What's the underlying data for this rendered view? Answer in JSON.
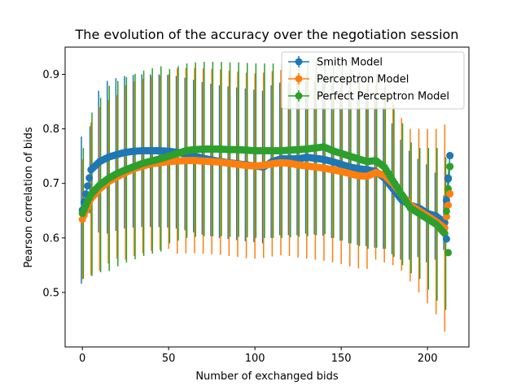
{
  "chart_data": {
    "type": "line",
    "title": "The evolution of the accuracy over the negotiation session",
    "xlabel": "Number of exchanged bids",
    "ylabel": "Pearson correlation of bids",
    "xlim": [
      -10,
      224
    ],
    "ylim": [
      0.4,
      0.95
    ],
    "xticks": [
      0,
      50,
      100,
      150,
      200
    ],
    "yticks": [
      0.5,
      0.6,
      0.7,
      0.8,
      0.9
    ],
    "grid": false,
    "legend_position": "top-right",
    "error_bars": true,
    "errorbar_sampling": "every 5th exchanged bid",
    "series": [
      {
        "name": "Smith Model",
        "color": "#1f77b4",
        "x": [
          0,
          5,
          10,
          15,
          20,
          25,
          30,
          35,
          40,
          45,
          50,
          55,
          60,
          65,
          70,
          75,
          80,
          85,
          90,
          95,
          100,
          105,
          110,
          115,
          120,
          125,
          130,
          135,
          140,
          145,
          150,
          155,
          160,
          165,
          170,
          175,
          180,
          185,
          190,
          195,
          200,
          205,
          210,
          213
        ],
        "y": [
          0.651,
          0.725,
          0.74,
          0.748,
          0.753,
          0.757,
          0.759,
          0.76,
          0.76,
          0.76,
          0.759,
          0.757,
          0.754,
          0.75,
          0.746,
          0.743,
          0.74,
          0.738,
          0.736,
          0.734,
          0.732,
          0.73,
          0.74,
          0.745,
          0.745,
          0.745,
          0.748,
          0.746,
          0.744,
          0.74,
          0.735,
          0.73,
          0.727,
          0.725,
          0.722,
          0.71,
          0.69,
          0.67,
          0.66,
          0.655,
          0.645,
          0.64,
          0.628,
          0.751
        ],
        "err": [
          0.135,
          0.08,
          0.13,
          0.14,
          0.14,
          0.14,
          0.14,
          0.14,
          0.14,
          0.14,
          0.14,
          0.14,
          0.14,
          0.14,
          0.14,
          0.14,
          0.14,
          0.14,
          0.14,
          0.14,
          0.14,
          0.14,
          0.14,
          0.14,
          0.14,
          0.14,
          0.14,
          0.14,
          0.14,
          0.14,
          0.14,
          0.14,
          0.14,
          0.14,
          0.14,
          0.13,
          0.12,
          0.11,
          0.1,
          0.09,
          0.09,
          0.08,
          0.05,
          0.0
        ]
      },
      {
        "name": "Perceptron Model",
        "color": "#ff7f0e",
        "x": [
          0,
          5,
          10,
          15,
          20,
          25,
          30,
          35,
          40,
          45,
          50,
          55,
          60,
          65,
          70,
          75,
          80,
          85,
          90,
          95,
          100,
          105,
          110,
          115,
          120,
          125,
          130,
          135,
          140,
          145,
          150,
          155,
          160,
          165,
          170,
          175,
          180,
          185,
          190,
          195,
          200,
          205,
          210,
          213
        ],
        "y": [
          0.634,
          0.672,
          0.69,
          0.703,
          0.712,
          0.72,
          0.727,
          0.732,
          0.736,
          0.738,
          0.74,
          0.741,
          0.742,
          0.742,
          0.741,
          0.74,
          0.739,
          0.737,
          0.735,
          0.733,
          0.732,
          0.733,
          0.736,
          0.738,
          0.737,
          0.734,
          0.732,
          0.73,
          0.728,
          0.725,
          0.722,
          0.718,
          0.714,
          0.713,
          0.72,
          0.715,
          0.7,
          0.68,
          0.66,
          0.65,
          0.64,
          0.63,
          0.618,
          0.681
        ],
        "err": [
          0.11,
          0.14,
          0.15,
          0.15,
          0.15,
          0.16,
          0.16,
          0.16,
          0.16,
          0.16,
          0.16,
          0.17,
          0.17,
          0.17,
          0.17,
          0.17,
          0.17,
          0.17,
          0.17,
          0.17,
          0.17,
          0.17,
          0.17,
          0.17,
          0.17,
          0.17,
          0.17,
          0.17,
          0.17,
          0.17,
          0.17,
          0.17,
          0.17,
          0.17,
          0.16,
          0.16,
          0.15,
          0.14,
          0.14,
          0.15,
          0.16,
          0.17,
          0.19,
          0.0
        ]
      },
      {
        "name": "Perfect Perceptron Model",
        "color": "#2ca02c",
        "x": [
          0,
          5,
          10,
          15,
          20,
          25,
          30,
          35,
          40,
          45,
          50,
          55,
          60,
          65,
          70,
          75,
          80,
          85,
          90,
          95,
          100,
          105,
          110,
          115,
          120,
          125,
          130,
          135,
          140,
          145,
          150,
          155,
          160,
          165,
          170,
          175,
          180,
          185,
          190,
          195,
          200,
          205,
          210,
          213
        ],
        "y": [
          0.645,
          0.68,
          0.697,
          0.709,
          0.718,
          0.725,
          0.731,
          0.737,
          0.741,
          0.745,
          0.75,
          0.755,
          0.76,
          0.762,
          0.763,
          0.763,
          0.763,
          0.762,
          0.762,
          0.761,
          0.76,
          0.76,
          0.76,
          0.76,
          0.761,
          0.762,
          0.763,
          0.765,
          0.767,
          0.76,
          0.755,
          0.75,
          0.745,
          0.74,
          0.742,
          0.73,
          0.705,
          0.68,
          0.655,
          0.645,
          0.635,
          0.625,
          0.608,
          0.731
        ],
        "err": [
          0.12,
          0.15,
          0.16,
          0.17,
          0.17,
          0.17,
          0.17,
          0.17,
          0.17,
          0.17,
          0.16,
          0.16,
          0.16,
          0.16,
          0.16,
          0.16,
          0.16,
          0.16,
          0.16,
          0.16,
          0.16,
          0.16,
          0.16,
          0.16,
          0.16,
          0.16,
          0.16,
          0.16,
          0.16,
          0.16,
          0.16,
          0.16,
          0.16,
          0.16,
          0.16,
          0.15,
          0.14,
          0.13,
          0.12,
          0.12,
          0.13,
          0.14,
          0.14,
          0.0
        ]
      }
    ],
    "end_markers": [
      {
        "series": "Smith Model",
        "points": [
          [
            213,
            0.751
          ],
          [
            212,
            0.708
          ],
          [
            211,
            0.598
          ]
        ]
      },
      {
        "series": "Perceptron Model",
        "points": [
          [
            213,
            0.681
          ]
        ]
      },
      {
        "series": "Perfect Perceptron Model",
        "points": [
          [
            213,
            0.731
          ],
          [
            212,
            0.573
          ]
        ]
      }
    ]
  }
}
